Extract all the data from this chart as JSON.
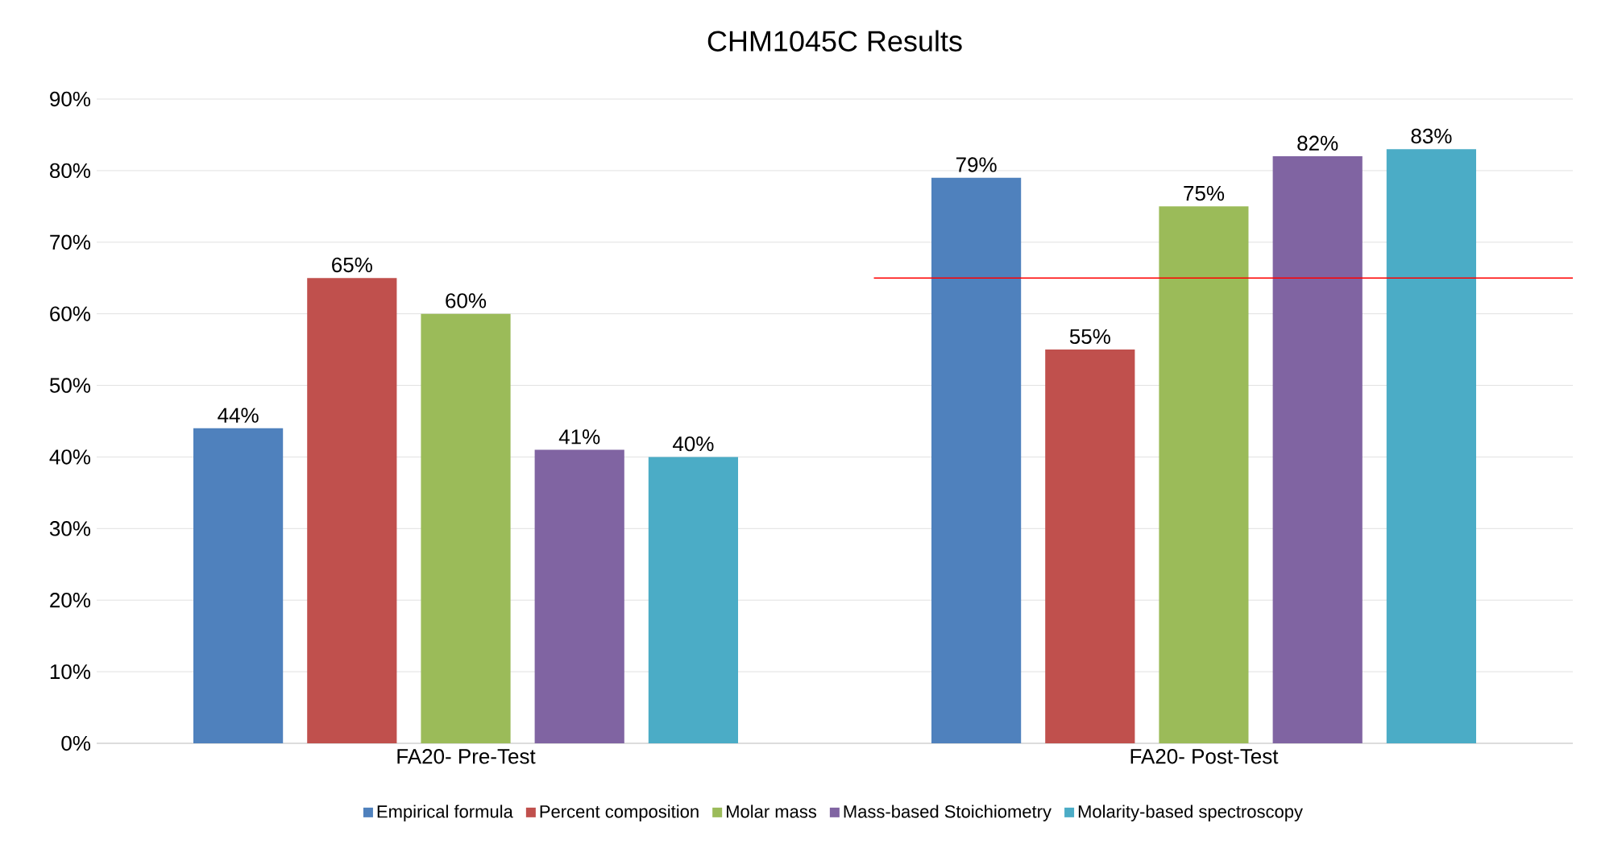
{
  "chart_data": {
    "type": "bar",
    "title": "CHM1045C Results",
    "categories": [
      "FA20- Pre-Test",
      "FA20- Post-Test"
    ],
    "series": [
      {
        "name": "Empirical formula",
        "color": "#4f81bd",
        "values": [
          44,
          79
        ],
        "value_labels": [
          "44%",
          "79%"
        ]
      },
      {
        "name": "Percent composition",
        "color": "#c0504d",
        "values": [
          65,
          55
        ],
        "value_labels": [
          "65%",
          "55%"
        ]
      },
      {
        "name": "Molar mass",
        "color": "#9bbb59",
        "values": [
          60,
          75
        ],
        "value_labels": [
          "60%",
          "75%"
        ]
      },
      {
        "name": "Mass-based Stoichiometry",
        "color": "#8064a2",
        "values": [
          41,
          82
        ],
        "value_labels": [
          "41%",
          "82%"
        ]
      },
      {
        "name": "Molarity-based spectroscopy",
        "color": "#4bacc6",
        "values": [
          40,
          83
        ],
        "value_labels": [
          "40%",
          "83%"
        ]
      }
    ],
    "ylim": [
      0,
      90
    ],
    "yticks": [
      {
        "value": 0,
        "label": "0%"
      },
      {
        "value": 10,
        "label": "10%"
      },
      {
        "value": 20,
        "label": "20%"
      },
      {
        "value": 30,
        "label": "30%"
      },
      {
        "value": 40,
        "label": "40%"
      },
      {
        "value": 50,
        "label": "50%"
      },
      {
        "value": 60,
        "label": "60%"
      },
      {
        "value": 70,
        "label": "70%"
      },
      {
        "value": 80,
        "label": "80%"
      },
      {
        "value": 90,
        "label": "90%"
      }
    ],
    "ref_lines": [
      {
        "axis": "y",
        "value": 65,
        "color": "#ff0000"
      }
    ],
    "grid": "y",
    "legend": "bottom"
  }
}
